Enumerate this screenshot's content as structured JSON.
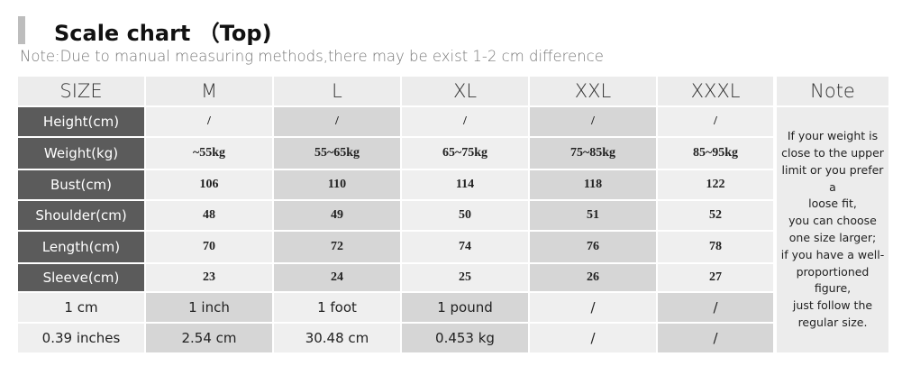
{
  "header": {
    "title": "Scale chart （Top)",
    "note": "Note:Due to manual measuring methods,there may be exist 1-2 cm difference"
  },
  "table": {
    "columns": [
      "SIZE",
      "M",
      "L",
      "XL",
      "XXL",
      "XXXL",
      "Note"
    ],
    "rows": [
      [
        "Height(cm)",
        "/",
        "/",
        "/",
        "/",
        "/"
      ],
      [
        "Weight(kg)",
        "~55kg",
        "55~65kg",
        "65~75kg",
        "75~85kg",
        "85~95kg"
      ],
      [
        "Bust(cm)",
        "106",
        "110",
        "114",
        "118",
        "122"
      ],
      [
        "Shoulder(cm)",
        "48",
        "49",
        "50",
        "51",
        "52"
      ],
      [
        "Length(cm)",
        "70",
        "72",
        "74",
        "76",
        "78"
      ],
      [
        "Sleeve(cm)",
        "23",
        "24",
        "25",
        "26",
        "27"
      ]
    ],
    "conversion_rows": [
      [
        "1 cm",
        "1 inch",
        "1 foot",
        "1 pound",
        "/",
        "/"
      ],
      [
        "0.39 inches",
        "2.54 cm",
        "30.48 cm",
        "0.453 kg",
        "/",
        "/"
      ]
    ],
    "note_lines": [
      "If your weight is",
      "close to the upper",
      "limit or you prefer a",
      "loose fit,",
      "you can choose",
      "one size larger;",
      "if you have a well-",
      "proportioned",
      "figure,",
      "just follow the",
      "regular size."
    ]
  }
}
